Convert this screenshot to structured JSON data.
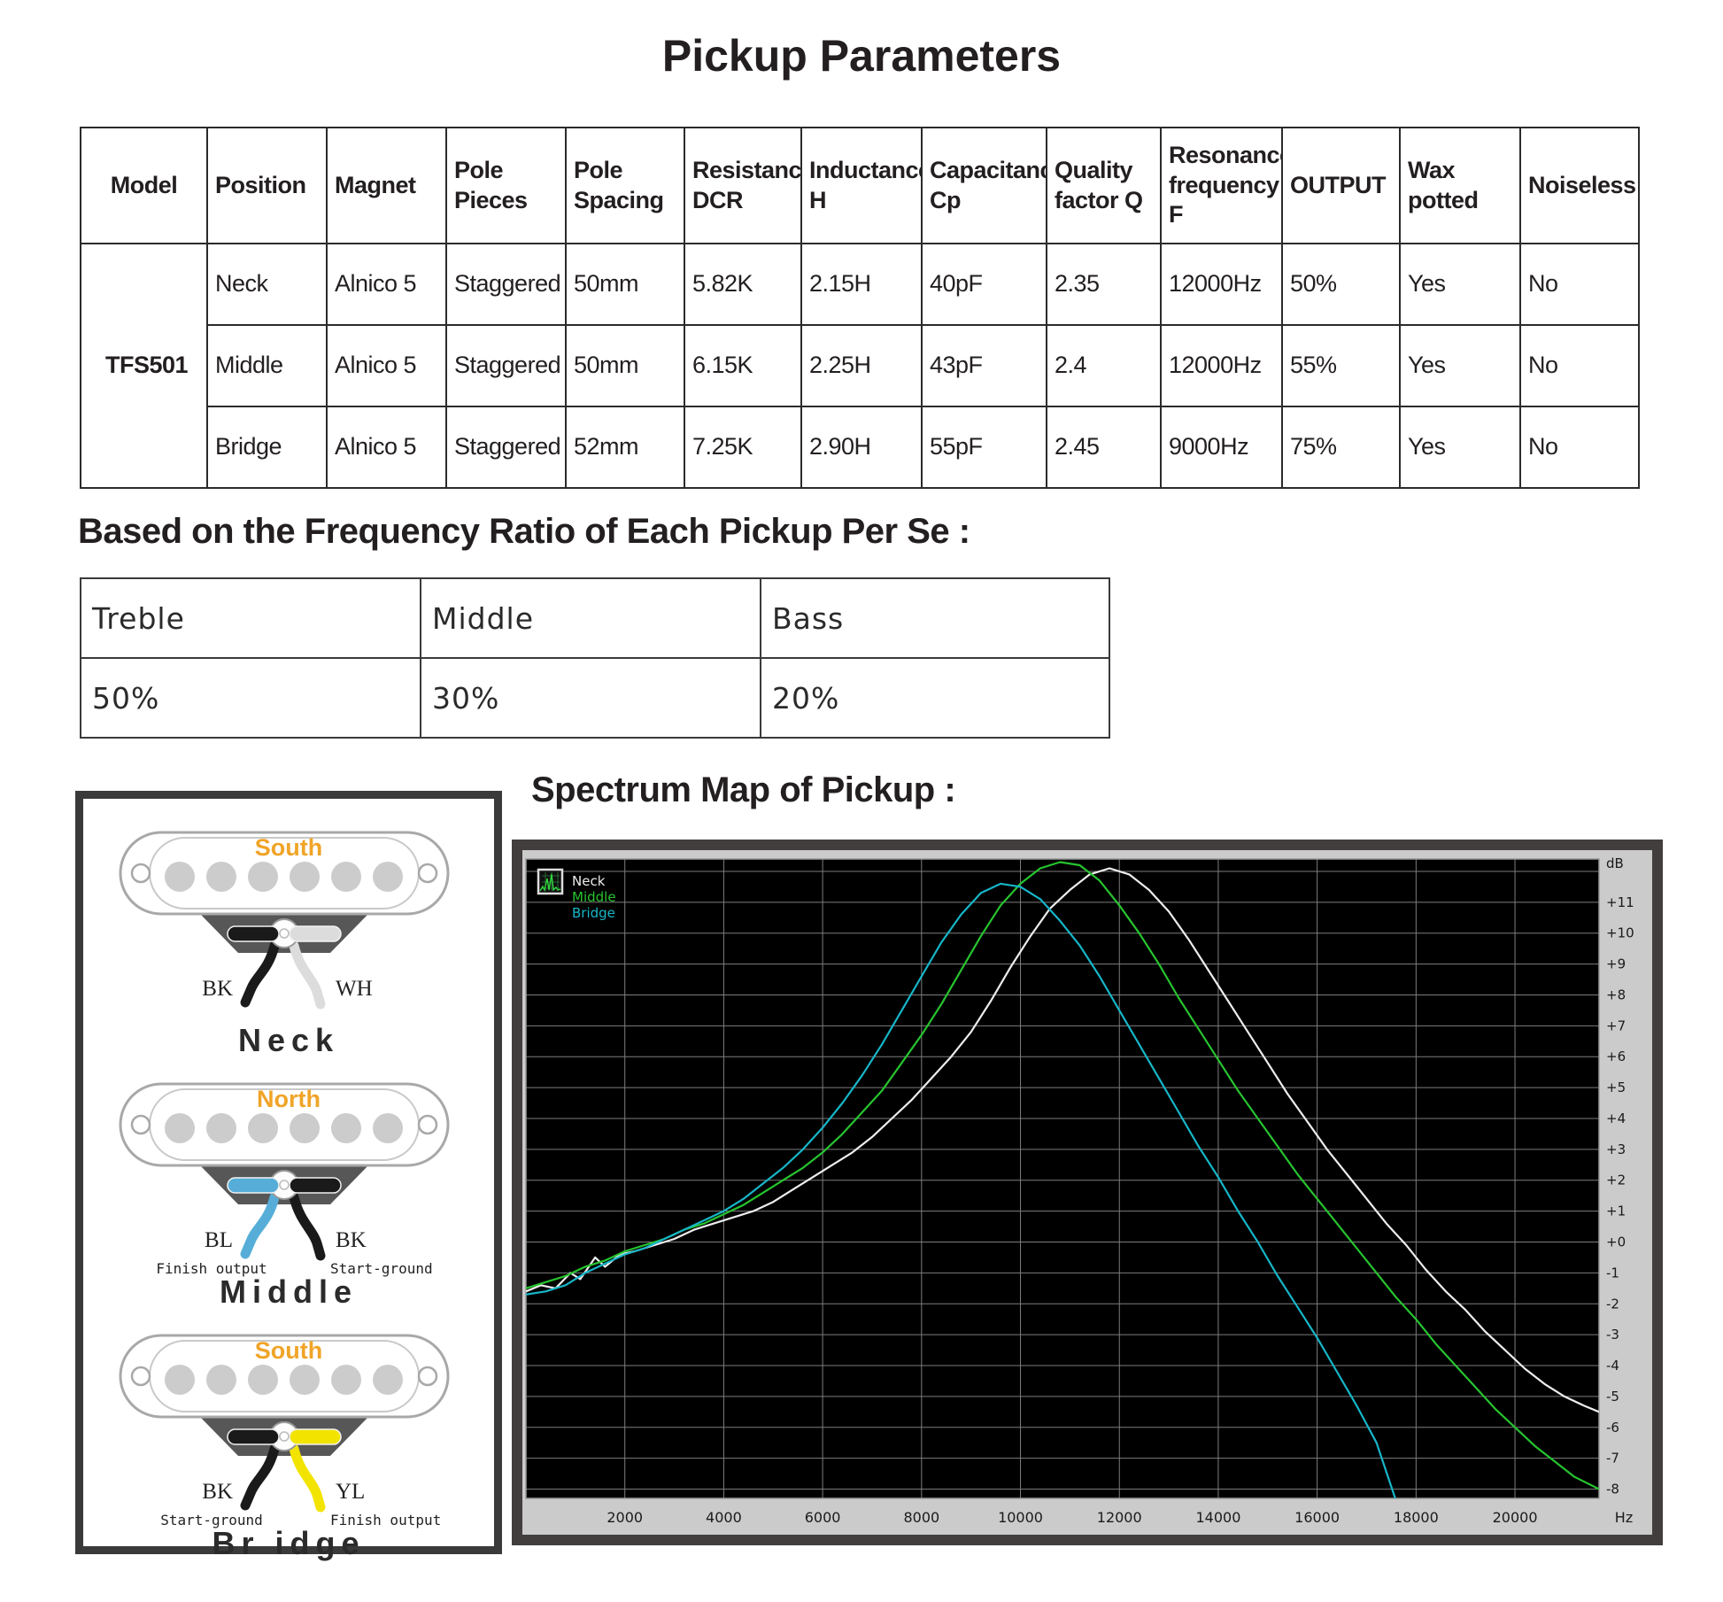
{
  "title": "Pickup Parameters",
  "main_table": {
    "headers": [
      "Model",
      "Position",
      "Magnet",
      "Pole Pieces",
      "Pole Spacing",
      "Resistance DCR",
      "Inductance H",
      "Capacitance Cp",
      "Quality factor Q",
      "Resonance frequency F",
      "OUTPUT",
      "Wax potted",
      "Noiseless"
    ],
    "model": "TFS501",
    "rows": [
      [
        "Neck",
        "Alnico 5",
        "Staggered",
        "50mm",
        "5.82K",
        "2.15H",
        "40pF",
        "2.35",
        "12000Hz",
        "50%",
        "Yes",
        "No"
      ],
      [
        "Middle",
        "Alnico 5",
        "Staggered",
        "50mm",
        "6.15K",
        "2.25H",
        "43pF",
        "2.4",
        "12000Hz",
        "55%",
        "Yes",
        "No"
      ],
      [
        "Bridge",
        "Alnico 5",
        "Staggered",
        "52mm",
        "7.25K",
        "2.90H",
        "55pF",
        "2.45",
        "9000Hz",
        "75%",
        "Yes",
        "No"
      ]
    ]
  },
  "ratio_section": {
    "heading": "Based on the Frequency Ratio of Each Pickup Per Se :",
    "columns": [
      "Treble",
      "Middle",
      "Bass"
    ],
    "values": [
      "50%",
      "30%",
      "20%"
    ]
  },
  "diagrams": {
    "polarity_color": "#f0a428",
    "pickups": [
      {
        "polarity": "South",
        "name": "Neck",
        "left_label": "BK",
        "right_label": "WH",
        "left_caption": "",
        "right_caption": "",
        "left_color": "#1a1a1a",
        "right_color": "#dcdcdc"
      },
      {
        "polarity": "North",
        "name": "Middle",
        "left_label": "BL",
        "right_label": "BK",
        "left_caption": "Finish output",
        "right_caption": "Start-ground",
        "left_color": "#56aed8",
        "right_color": "#1a1a1a"
      },
      {
        "polarity": "South",
        "name": "Br idge",
        "left_label": "BK",
        "right_label": "YL",
        "left_caption": "Start-ground",
        "right_caption": "Finish output",
        "left_color": "#1a1a1a",
        "right_color": "#f2e300"
      }
    ]
  },
  "spectrum_heading": "Spectrum Map of Pickup :",
  "chart_data": {
    "type": "line",
    "title": "Spectrum Map of Pickup",
    "xlabel": "Hz",
    "ylabel": "dB",
    "x_range": [
      0,
      21700
    ],
    "y_range": [
      -8.3,
      12.4
    ],
    "x_ticks": [
      2000,
      4000,
      6000,
      8000,
      10000,
      12000,
      14000,
      16000,
      18000,
      20000
    ],
    "y_ticks": [
      11,
      10,
      9,
      8,
      7,
      6,
      5,
      4,
      3,
      2,
      1,
      0,
      -1,
      -2,
      -3,
      -4,
      -5,
      -6,
      -7,
      -8
    ],
    "grid": "on",
    "legend_position": "top-left",
    "legend": [
      "Neck",
      "Middle",
      "Bridge"
    ],
    "colors": {
      "panel": "#cbcbcb",
      "plot_bg": "#000000",
      "grid": "#7d7d7d",
      "frame": "#423e3e",
      "tick_text": "#1a1a1a"
    },
    "series": [
      {
        "name": "Neck",
        "color": "#ededed",
        "peak_hz": 11800,
        "peak_db": 12.1,
        "points": [
          [
            0,
            -1.6
          ],
          [
            300,
            -1.4
          ],
          [
            600,
            -1.5
          ],
          [
            900,
            -1.0
          ],
          [
            1100,
            -1.2
          ],
          [
            1400,
            -0.5
          ],
          [
            1600,
            -0.8
          ],
          [
            1900,
            -0.4
          ],
          [
            2200,
            -0.3
          ],
          [
            2600,
            -0.1
          ],
          [
            3000,
            0.1
          ],
          [
            3400,
            0.4
          ],
          [
            3800,
            0.6
          ],
          [
            4200,
            0.8
          ],
          [
            4600,
            1.0
          ],
          [
            5000,
            1.3
          ],
          [
            5400,
            1.7
          ],
          [
            5800,
            2.1
          ],
          [
            6200,
            2.5
          ],
          [
            6600,
            2.9
          ],
          [
            7000,
            3.4
          ],
          [
            7400,
            4.0
          ],
          [
            7800,
            4.6
          ],
          [
            8200,
            5.3
          ],
          [
            8600,
            6.0
          ],
          [
            9000,
            6.8
          ],
          [
            9400,
            7.8
          ],
          [
            9800,
            8.9
          ],
          [
            10200,
            9.9
          ],
          [
            10600,
            10.8
          ],
          [
            11000,
            11.4
          ],
          [
            11400,
            11.9
          ],
          [
            11800,
            12.1
          ],
          [
            12200,
            11.9
          ],
          [
            12600,
            11.4
          ],
          [
            13000,
            10.7
          ],
          [
            13400,
            9.8
          ],
          [
            13800,
            8.8
          ],
          [
            14200,
            7.8
          ],
          [
            14600,
            6.8
          ],
          [
            15000,
            5.8
          ],
          [
            15400,
            4.8
          ],
          [
            15800,
            3.9
          ],
          [
            16200,
            3.0
          ],
          [
            16600,
            2.2
          ],
          [
            17000,
            1.4
          ],
          [
            17400,
            0.6
          ],
          [
            17800,
            -0.1
          ],
          [
            18200,
            -0.9
          ],
          [
            18600,
            -1.6
          ],
          [
            19000,
            -2.2
          ],
          [
            19400,
            -2.9
          ],
          [
            19800,
            -3.5
          ],
          [
            20200,
            -4.1
          ],
          [
            20600,
            -4.6
          ],
          [
            21000,
            -5.0
          ],
          [
            21400,
            -5.3
          ],
          [
            21700,
            -5.5
          ]
        ]
      },
      {
        "name": "Middle",
        "color": "#27c42f",
        "peak_hz": 10800,
        "peak_db": 12.3,
        "points": [
          [
            0,
            -1.5
          ],
          [
            400,
            -1.3
          ],
          [
            800,
            -1.1
          ],
          [
            1200,
            -0.8
          ],
          [
            1600,
            -0.6
          ],
          [
            2000,
            -0.3
          ],
          [
            2400,
            -0.1
          ],
          [
            2800,
            0.1
          ],
          [
            3200,
            0.4
          ],
          [
            3600,
            0.6
          ],
          [
            4000,
            0.9
          ],
          [
            4400,
            1.2
          ],
          [
            4800,
            1.6
          ],
          [
            5200,
            2.0
          ],
          [
            5600,
            2.4
          ],
          [
            6000,
            2.9
          ],
          [
            6400,
            3.5
          ],
          [
            6800,
            4.2
          ],
          [
            7200,
            4.9
          ],
          [
            7600,
            5.8
          ],
          [
            8000,
            6.7
          ],
          [
            8400,
            7.7
          ],
          [
            8800,
            8.8
          ],
          [
            9200,
            9.9
          ],
          [
            9600,
            10.9
          ],
          [
            10000,
            11.6
          ],
          [
            10400,
            12.1
          ],
          [
            10800,
            12.3
          ],
          [
            11200,
            12.2
          ],
          [
            11600,
            11.7
          ],
          [
            12000,
            10.9
          ],
          [
            12400,
            10.0
          ],
          [
            12800,
            9.0
          ],
          [
            13200,
            7.9
          ],
          [
            13600,
            6.9
          ],
          [
            14000,
            5.9
          ],
          [
            14400,
            4.9
          ],
          [
            14800,
            4.0
          ],
          [
            15200,
            3.1
          ],
          [
            15600,
            2.2
          ],
          [
            16000,
            1.4
          ],
          [
            16400,
            0.6
          ],
          [
            16800,
            -0.2
          ],
          [
            17200,
            -1.0
          ],
          [
            17600,
            -1.8
          ],
          [
            18000,
            -2.5
          ],
          [
            18400,
            -3.3
          ],
          [
            18800,
            -4.0
          ],
          [
            19200,
            -4.7
          ],
          [
            19600,
            -5.4
          ],
          [
            20000,
            -6.0
          ],
          [
            20400,
            -6.6
          ],
          [
            20800,
            -7.1
          ],
          [
            21200,
            -7.6
          ],
          [
            21700,
            -8.0
          ]
        ]
      },
      {
        "name": "Bridge",
        "color": "#16b6c8",
        "peak_hz": 9800,
        "peak_db": 11.6,
        "points": [
          [
            0,
            -1.7
          ],
          [
            400,
            -1.6
          ],
          [
            800,
            -1.4
          ],
          [
            1200,
            -1.0
          ],
          [
            1600,
            -0.7
          ],
          [
            2000,
            -0.4
          ],
          [
            2400,
            -0.2
          ],
          [
            2800,
            0.1
          ],
          [
            3200,
            0.4
          ],
          [
            3600,
            0.7
          ],
          [
            4000,
            1.0
          ],
          [
            4400,
            1.4
          ],
          [
            4800,
            1.9
          ],
          [
            5200,
            2.4
          ],
          [
            5600,
            3.0
          ],
          [
            6000,
            3.7
          ],
          [
            6400,
            4.5
          ],
          [
            6800,
            5.4
          ],
          [
            7200,
            6.4
          ],
          [
            7600,
            7.5
          ],
          [
            8000,
            8.6
          ],
          [
            8400,
            9.7
          ],
          [
            8800,
            10.6
          ],
          [
            9200,
            11.3
          ],
          [
            9600,
            11.6
          ],
          [
            10000,
            11.5
          ],
          [
            10400,
            11.1
          ],
          [
            10800,
            10.4
          ],
          [
            11200,
            9.6
          ],
          [
            11600,
            8.6
          ],
          [
            12000,
            7.5
          ],
          [
            12400,
            6.4
          ],
          [
            12800,
            5.3
          ],
          [
            13200,
            4.2
          ],
          [
            13600,
            3.1
          ],
          [
            14000,
            2.1
          ],
          [
            14400,
            1.0
          ],
          [
            14800,
            0.0
          ],
          [
            15200,
            -1.1
          ],
          [
            15600,
            -2.1
          ],
          [
            16000,
            -3.1
          ],
          [
            16400,
            -4.2
          ],
          [
            16800,
            -5.3
          ],
          [
            17200,
            -6.5
          ],
          [
            17600,
            -8.4
          ]
        ]
      }
    ]
  }
}
